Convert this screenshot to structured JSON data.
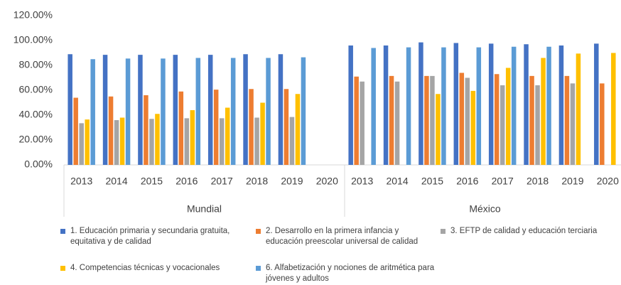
{
  "chart_data": {
    "type": "bar",
    "groups": [
      "Mundial",
      "México"
    ],
    "categories": [
      "2013",
      "2014",
      "2015",
      "2016",
      "2017",
      "2018",
      "2019",
      "2020",
      "2013",
      "2014",
      "2015",
      "2016",
      "2017",
      "2018",
      "2019",
      "2020"
    ],
    "ylim": [
      0,
      120
    ],
    "yticks": [
      {
        "value": 0,
        "label": "0.00%"
      },
      {
        "value": 20,
        "label": "20.00%"
      },
      {
        "value": 40,
        "label": "40.00%"
      },
      {
        "value": 60,
        "label": "60.00%"
      },
      {
        "value": 80,
        "label": "80.00%"
      },
      {
        "value": 100,
        "label": "100.00%"
      },
      {
        "value": 120,
        "label": "120.00%"
      }
    ],
    "grid": false,
    "legend": "bottom",
    "series": [
      {
        "name": "1. Educación primaria y secundaria gratuita, equitativa y de calidad",
        "color": "#4472c4",
        "values": [
          89,
          88.5,
          88.5,
          88.5,
          88.5,
          89,
          89,
          null,
          96,
          96,
          98.5,
          98,
          97.5,
          97,
          96,
          97.5
        ]
      },
      {
        "name": "2. Desarrollo en la primera infancia y educación preescolar universal de calidad",
        "color": "#ed7d31",
        "values": [
          54,
          55,
          56,
          59,
          60.5,
          61,
          61,
          null,
          71,
          71.5,
          71.5,
          74,
          73,
          71.5,
          71.5,
          65.5
        ]
      },
      {
        "name": "3. EFTP de calidad y educación terciaria",
        "color": "#a5a5a5",
        "values": [
          33.5,
          36,
          37,
          37.5,
          37.5,
          38,
          38.5,
          null,
          67,
          67,
          71.5,
          70,
          64,
          64,
          65.5,
          null
        ]
      },
      {
        "name": "4. Competencias técnicas y vocacionales",
        "color": "#ffc000",
        "values": [
          36.5,
          38,
          41,
          44,
          46,
          50,
          57,
          null,
          null,
          null,
          57,
          59.5,
          78,
          86,
          89.5,
          90
        ]
      },
      {
        "name": "6. Alfabetización y nociones de aritmética para jóvenes y adultos",
        "color": "#5b9bd5",
        "values": [
          85,
          85.5,
          85.5,
          86,
          86,
          86,
          86.5,
          null,
          94,
          94.5,
          94.5,
          94.5,
          95,
          95,
          null,
          null
        ]
      }
    ]
  }
}
